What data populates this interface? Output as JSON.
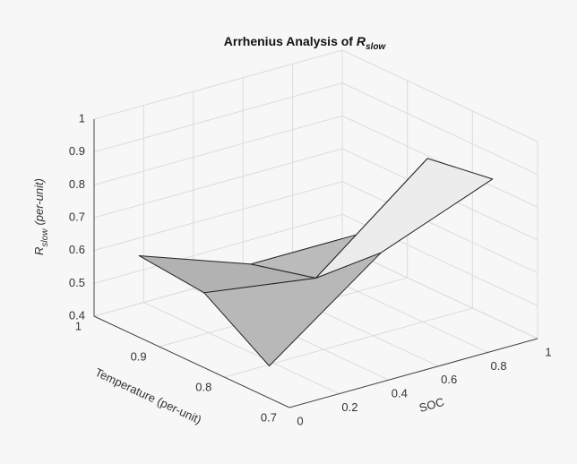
{
  "chart_data": {
    "type": "surface3d",
    "title": "Arrhenius Analysis of ",
    "title_symbol": "R",
    "title_subscript": "slow",
    "xlabel": "SOC",
    "ylabel": "Temperature (per-unit)",
    "zlabel_symbol": "R",
    "zlabel_subscript": "slow",
    "zlabel_unit": "(per-unit)",
    "x": [
      0.05,
      0.5,
      0.95
    ],
    "y": [
      0.75,
      0.85,
      0.95
    ],
    "z": [
      [
        0.47,
        0.72,
        0.85
      ],
      [
        0.6,
        0.55,
        0.82
      ],
      [
        0.62,
        0.5,
        0.5
      ]
    ],
    "xlim": [
      0,
      1
    ],
    "xticks": [
      0,
      0.2,
      0.4,
      0.6,
      0.8,
      1
    ],
    "ylim": [
      0.7,
      1
    ],
    "yticks": [
      0.7,
      0.8,
      0.9,
      1
    ],
    "zlim": [
      0.4,
      1
    ],
    "zticks": [
      0.4,
      0.5,
      0.6,
      0.7,
      0.8,
      0.9,
      1
    ],
    "grid": true,
    "edge_color": "#222222"
  }
}
